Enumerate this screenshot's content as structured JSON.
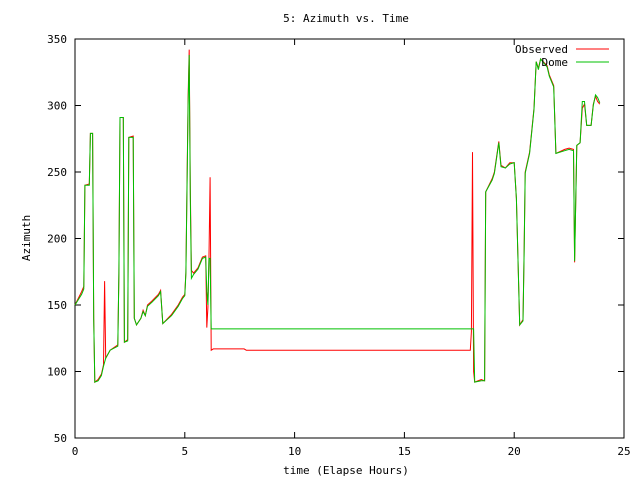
{
  "chart_data": {
    "type": "line",
    "title": "5: Azimuth vs. Time",
    "xlabel": "time (Elapse Hours)",
    "ylabel": "Azimuth",
    "xlim": [
      0,
      25
    ],
    "ylim": [
      50,
      350
    ],
    "x_ticks": [
      0,
      5,
      10,
      15,
      20,
      25
    ],
    "y_ticks": [
      50,
      100,
      150,
      200,
      250,
      300,
      350
    ],
    "grid": false,
    "legend_position": "top-right",
    "series": [
      {
        "name": "Observed",
        "color": "#ff0000",
        "points": [
          [
            0.0,
            150
          ],
          [
            0.3,
            160
          ],
          [
            0.4,
            164
          ],
          [
            0.45,
            240
          ],
          [
            0.65,
            241
          ],
          [
            0.7,
            279
          ],
          [
            0.8,
            279
          ],
          [
            0.85,
            140
          ],
          [
            0.9,
            92
          ],
          [
            1.05,
            94
          ],
          [
            1.2,
            98
          ],
          [
            1.3,
            105
          ],
          [
            1.35,
            168
          ],
          [
            1.4,
            110
          ],
          [
            1.6,
            116
          ],
          [
            1.95,
            120
          ],
          [
            2.0,
            174
          ],
          [
            2.05,
            291
          ],
          [
            2.2,
            291
          ],
          [
            2.25,
            122
          ],
          [
            2.4,
            124
          ],
          [
            2.45,
            276
          ],
          [
            2.65,
            277
          ],
          [
            2.7,
            140
          ],
          [
            2.8,
            135
          ],
          [
            3.0,
            140
          ],
          [
            3.1,
            146
          ],
          [
            3.2,
            142
          ],
          [
            3.3,
            150
          ],
          [
            3.5,
            153
          ],
          [
            3.8,
            158
          ],
          [
            3.9,
            161
          ],
          [
            4.0,
            136
          ],
          [
            4.4,
            143
          ],
          [
            4.7,
            150
          ],
          [
            4.9,
            156
          ],
          [
            5.0,
            158
          ],
          [
            5.05,
            175
          ],
          [
            5.15,
            306
          ],
          [
            5.2,
            342
          ],
          [
            5.25,
            238
          ],
          [
            5.3,
            176
          ],
          [
            5.4,
            174
          ],
          [
            5.6,
            178
          ],
          [
            5.8,
            186
          ],
          [
            5.95,
            187
          ],
          [
            6.0,
            133
          ],
          [
            6.05,
            148
          ],
          [
            6.1,
            187
          ],
          [
            6.15,
            246
          ],
          [
            6.2,
            116
          ],
          [
            6.3,
            117
          ],
          [
            7.7,
            117
          ],
          [
            7.8,
            116
          ],
          [
            18.0,
            116
          ],
          [
            18.05,
            130
          ],
          [
            18.1,
            265
          ],
          [
            18.15,
            100
          ],
          [
            18.2,
            92
          ],
          [
            18.5,
            94
          ],
          [
            18.65,
            93
          ],
          [
            18.7,
            235
          ],
          [
            19.0,
            245
          ],
          [
            19.1,
            250
          ],
          [
            19.3,
            273
          ],
          [
            19.4,
            255
          ],
          [
            19.6,
            253
          ],
          [
            19.8,
            257
          ],
          [
            20.0,
            257
          ],
          [
            20.1,
            230
          ],
          [
            20.25,
            135
          ],
          [
            20.4,
            139
          ],
          [
            20.45,
            190
          ],
          [
            20.5,
            250
          ],
          [
            20.7,
            265
          ],
          [
            20.9,
            298
          ],
          [
            21.0,
            333
          ],
          [
            21.1,
            328
          ],
          [
            21.2,
            335
          ],
          [
            21.5,
            330
          ],
          [
            21.6,
            323
          ],
          [
            21.8,
            315
          ],
          [
            21.9,
            264
          ],
          [
            22.3,
            267
          ],
          [
            22.5,
            268
          ],
          [
            22.7,
            267
          ],
          [
            22.75,
            182
          ],
          [
            22.85,
            270
          ],
          [
            23.0,
            272
          ],
          [
            23.1,
            298
          ],
          [
            23.2,
            301
          ],
          [
            23.3,
            285
          ],
          [
            23.5,
            285
          ],
          [
            23.6,
            301
          ],
          [
            23.7,
            307
          ],
          [
            23.8,
            303
          ],
          [
            23.9,
            301
          ]
        ]
      },
      {
        "name": "Dome",
        "color": "#00c000",
        "points": [
          [
            0.0,
            150
          ],
          [
            0.3,
            158
          ],
          [
            0.4,
            162
          ],
          [
            0.45,
            240
          ],
          [
            0.65,
            240
          ],
          [
            0.7,
            279
          ],
          [
            0.8,
            279
          ],
          [
            0.85,
            140
          ],
          [
            0.9,
            92
          ],
          [
            1.05,
            93
          ],
          [
            1.2,
            97
          ],
          [
            1.3,
            104
          ],
          [
            1.4,
            110
          ],
          [
            1.6,
            116
          ],
          [
            1.95,
            119
          ],
          [
            2.0,
            174
          ],
          [
            2.05,
            291
          ],
          [
            2.2,
            291
          ],
          [
            2.25,
            122
          ],
          [
            2.4,
            123
          ],
          [
            2.45,
            276
          ],
          [
            2.65,
            276
          ],
          [
            2.7,
            140
          ],
          [
            2.8,
            135
          ],
          [
            3.0,
            140
          ],
          [
            3.1,
            145
          ],
          [
            3.2,
            142
          ],
          [
            3.3,
            149
          ],
          [
            3.5,
            152
          ],
          [
            3.8,
            157
          ],
          [
            3.9,
            160
          ],
          [
            4.0,
            136
          ],
          [
            4.4,
            142
          ],
          [
            4.7,
            149
          ],
          [
            4.9,
            155
          ],
          [
            5.0,
            157
          ],
          [
            5.05,
            174
          ],
          [
            5.15,
            300
          ],
          [
            5.2,
            338
          ],
          [
            5.25,
            230
          ],
          [
            5.3,
            170
          ],
          [
            5.4,
            173
          ],
          [
            5.6,
            177
          ],
          [
            5.8,
            185
          ],
          [
            5.95,
            186
          ],
          [
            6.0,
            160
          ],
          [
            6.05,
            150
          ],
          [
            6.1,
            185
          ],
          [
            6.15,
            185
          ],
          [
            6.2,
            132
          ],
          [
            6.3,
            132
          ],
          [
            18.05,
            132
          ],
          [
            18.15,
            132
          ],
          [
            18.2,
            92
          ],
          [
            18.5,
            93
          ],
          [
            18.65,
            93
          ],
          [
            18.7,
            235
          ],
          [
            19.0,
            244
          ],
          [
            19.1,
            249
          ],
          [
            19.3,
            272
          ],
          [
            19.4,
            254
          ],
          [
            19.6,
            253
          ],
          [
            19.8,
            256
          ],
          [
            20.0,
            257
          ],
          [
            20.1,
            230
          ],
          [
            20.25,
            135
          ],
          [
            20.4,
            138
          ],
          [
            20.45,
            188
          ],
          [
            20.5,
            249
          ],
          [
            20.7,
            264
          ],
          [
            20.9,
            297
          ],
          [
            21.0,
            333
          ],
          [
            21.1,
            327
          ],
          [
            21.2,
            335
          ],
          [
            21.5,
            329
          ],
          [
            21.6,
            322
          ],
          [
            21.8,
            314
          ],
          [
            21.9,
            264
          ],
          [
            22.3,
            266
          ],
          [
            22.5,
            267
          ],
          [
            22.7,
            266
          ],
          [
            22.75,
            183
          ],
          [
            22.85,
            270
          ],
          [
            23.0,
            272
          ],
          [
            23.1,
            303
          ],
          [
            23.2,
            303
          ],
          [
            23.3,
            285
          ],
          [
            23.5,
            285
          ],
          [
            23.6,
            300
          ],
          [
            23.7,
            308
          ],
          [
            23.8,
            306
          ],
          [
            23.9,
            302
          ]
        ]
      }
    ]
  }
}
